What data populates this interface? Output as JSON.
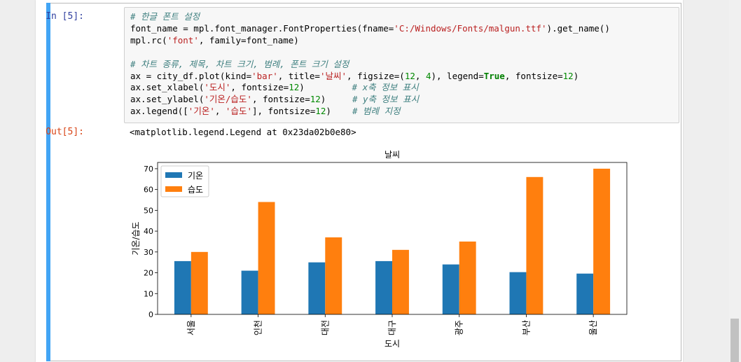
{
  "cell": {
    "in_prompt": "In [5]:",
    "out_prompt": "Out[5]:",
    "output_text": "<matplotlib.legend.Legend at 0x23da02b0e80>"
  },
  "code": {
    "comment1": "# 한글 폰트 설정",
    "line2_a": "font_name = mpl.font_manager.FontProperties(fname=",
    "line2_str": "'C:/Windows/Fonts/malgun.ttf'",
    "line2_b": ").get_name()",
    "line3_a": "mpl.rc(",
    "line3_str": "'font'",
    "line3_b": ", family=font_name)",
    "comment2": "# 차트 종류, 제목, 차트 크기, 범례, 폰트 크기 설정",
    "line5_a": "ax = city_df.plot(kind=",
    "line5_str1": "'bar'",
    "line5_b": ", title=",
    "line5_str2": "'날씨'",
    "line5_c": ", figsize=(",
    "line5_n1": "12",
    "line5_d": ", ",
    "line5_n2": "4",
    "line5_e": "), legend=",
    "line5_kw": "True",
    "line5_f": ", fontsize=",
    "line5_n3": "12",
    "line5_g": ")",
    "line6_a": "ax.set_xlabel(",
    "line6_str": "'도시'",
    "line6_b": ", fontsize=",
    "line6_n": "12",
    "line6_c": ")         ",
    "line6_cm": "# x축 정보 표시",
    "line7_a": "ax.set_ylabel(",
    "line7_str": "'기온/습도'",
    "line7_b": ", fontsize=",
    "line7_n": "12",
    "line7_c": ")     ",
    "line7_cm": "# y축 정보 표시",
    "line8_a": "ax.legend([",
    "line8_str1": "'기온'",
    "line8_b": ", ",
    "line8_str2": "'습도'",
    "line8_c": "], fontsize=",
    "line8_n": "12",
    "line8_d": ")    ",
    "line8_cm": "# 범례 지정"
  },
  "colors": {
    "series1": "#1f77b4",
    "series2": "#ff7f0e",
    "cell_border": "#42a5f5"
  },
  "chart_data": {
    "type": "bar",
    "title": "날씨",
    "xlabel": "도시",
    "ylabel": "기온/습도",
    "categories": [
      "서울",
      "인천",
      "대전",
      "대구",
      "광주",
      "부산",
      "울산"
    ],
    "series": [
      {
        "name": "기온",
        "values": [
          25.6,
          21.0,
          25.0,
          25.6,
          24.0,
          20.3,
          19.6
        ]
      },
      {
        "name": "습도",
        "values": [
          30,
          54,
          37,
          31,
          35,
          66,
          70
        ]
      }
    ],
    "ylim": [
      0,
      73
    ],
    "yticks": [
      0,
      10,
      20,
      30,
      40,
      50,
      60,
      70
    ],
    "legend": "top-left",
    "grid": false
  }
}
